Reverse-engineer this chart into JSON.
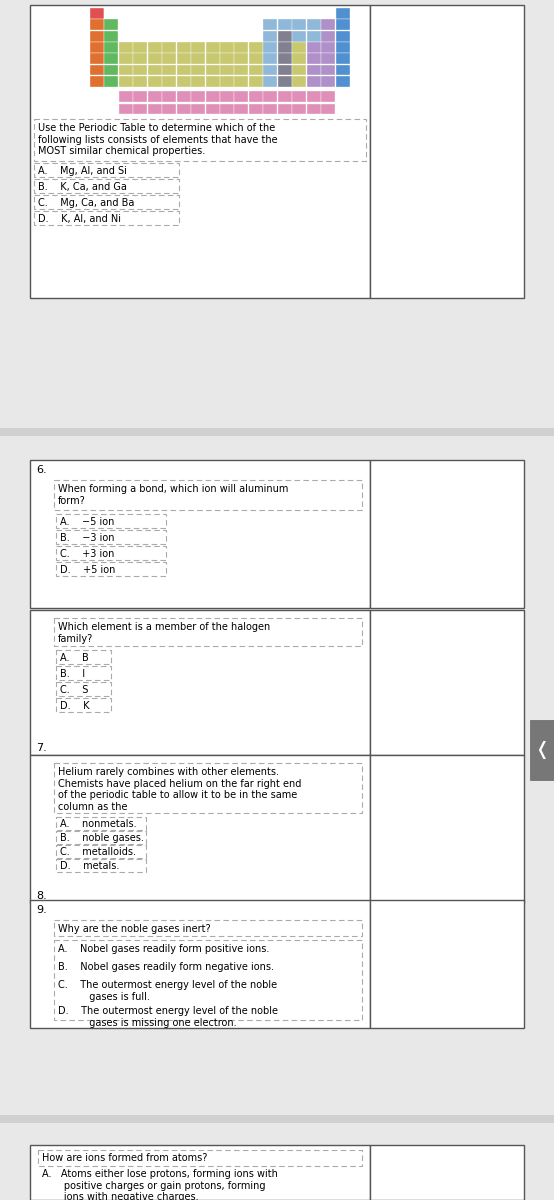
{
  "bg_color": "#e8e8e8",
  "page_bg": "#ffffff",
  "border_color": "#555555",
  "dotted_color": "#aaaaaa",
  "text_color": "#000000",
  "q5_choices": [
    "A.    Mg, Al, and Si",
    "B.    K, Ca, and Ga",
    "C.    Mg, Ca, and Ba",
    "D.    K, Al, and Ni"
  ],
  "q6_choices": [
    "A.    −5 ion",
    "B.    −3 ion",
    "C.    +3 ion",
    "D.    +5 ion"
  ],
  "halogen_choices": [
    "A.    B",
    "B.    I",
    "C.    S",
    "D.    K"
  ],
  "helium_choices": [
    "A.    nonmetals.",
    "B.    noble gases.",
    "C.    metalloids.",
    "D.    metals."
  ],
  "noble_choices": [
    "A.    Nobel gases readily form positive ions.",
    "B.    Nobel gases readily form negative ions.",
    "C.    The outermost energy level of the noble\n          gases is full.",
    "D.    The outermost energy level of the noble\n          gases is missing one electron."
  ]
}
